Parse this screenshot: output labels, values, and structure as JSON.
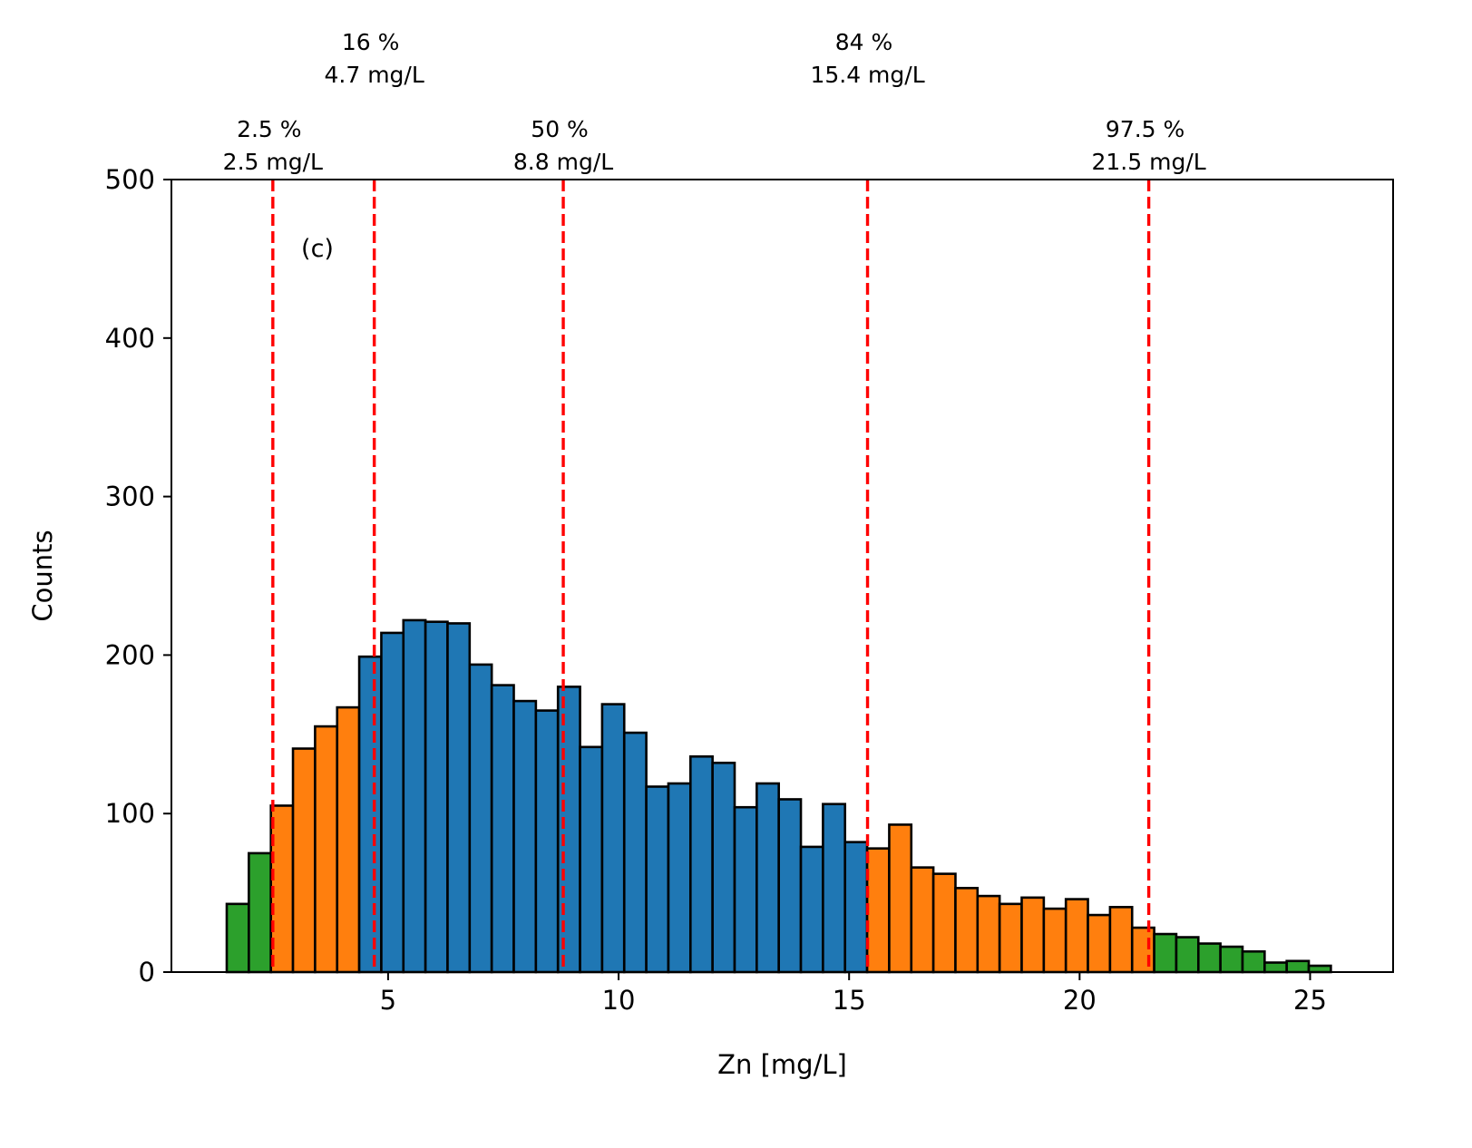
{
  "chart_data": {
    "type": "histogram",
    "panel_label": "(c)",
    "xlabel": "Zn [mg/L]",
    "ylabel": "Counts",
    "xlim": [
      0.3,
      26.8
    ],
    "ylim": [
      0,
      500
    ],
    "xticks": [
      5,
      10,
      15,
      20,
      25
    ],
    "yticks": [
      0,
      100,
      200,
      300,
      400,
      500
    ],
    "bin_width": 0.479,
    "bin_start": 1.5,
    "counts": [
      43,
      75,
      105,
      141,
      155,
      167,
      199,
      214,
      222,
      221,
      220,
      194,
      181,
      171,
      165,
      180,
      142,
      169,
      151,
      117,
      119,
      136,
      132,
      104,
      119,
      109,
      79,
      106,
      82,
      78,
      93,
      66,
      62,
      53,
      48,
      43,
      47,
      40,
      46,
      36,
      41,
      28,
      24,
      22,
      18,
      16,
      13,
      6,
      7,
      4
    ],
    "bin_colors": [
      "green",
      "green",
      "orange",
      "orange",
      "orange",
      "orange",
      "blue",
      "blue",
      "blue",
      "blue",
      "blue",
      "blue",
      "blue",
      "blue",
      "blue",
      "blue",
      "blue",
      "blue",
      "blue",
      "blue",
      "blue",
      "blue",
      "blue",
      "blue",
      "blue",
      "blue",
      "blue",
      "blue",
      "blue",
      "orange",
      "orange",
      "orange",
      "orange",
      "orange",
      "orange",
      "orange",
      "orange",
      "orange",
      "orange",
      "orange",
      "orange",
      "orange",
      "green",
      "green",
      "green",
      "green",
      "green",
      "green",
      "green",
      "green"
    ],
    "colors": {
      "blue": "#1f77b4",
      "orange": "#ff7f0e",
      "green": "#2ca02c",
      "edge": "#000000",
      "percentile_line": "#ff0000"
    },
    "percentiles": [
      {
        "x": 2.5,
        "pct_label": "2.5 %",
        "value_label": "2.5 mg/L",
        "row": "low"
      },
      {
        "x": 4.7,
        "pct_label": "16 %",
        "value_label": "4.7 mg/L",
        "row": "high"
      },
      {
        "x": 8.8,
        "pct_label": "50 %",
        "value_label": "8.8 mg/L",
        "row": "low"
      },
      {
        "x": 15.4,
        "pct_label": "84 %",
        "value_label": "15.4 mg/L",
        "row": "high"
      },
      {
        "x": 21.5,
        "pct_label": "97.5 %",
        "value_label": "21.5 mg/L",
        "row": "low"
      }
    ]
  }
}
